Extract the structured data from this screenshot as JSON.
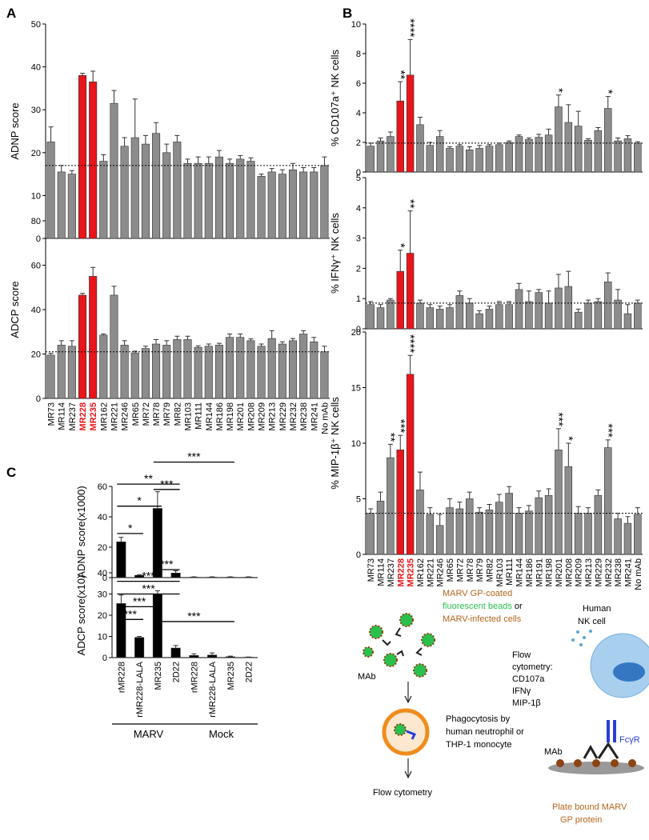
{
  "panel_labels": [
    "A",
    "B",
    "C"
  ],
  "chart_data": [
    {
      "type": "bar",
      "y_label": "ADNP score",
      "ylim": [
        0,
        50
      ],
      "yticks": [
        0,
        10,
        20,
        30,
        40,
        50
      ],
      "color": "#8c8c8c",
      "reference_line": 17,
      "categories": [
        null,
        null,
        null,
        null,
        null,
        null,
        null,
        null,
        null,
        null,
        null,
        null,
        null,
        null,
        null,
        null,
        null,
        null,
        null,
        null,
        null,
        null,
        null,
        null,
        null,
        null,
        null
      ],
      "values": [
        22.5,
        15.5,
        15,
        38,
        36.5,
        18,
        31.5,
        21.5,
        23.5,
        22,
        24.5,
        20,
        22.5,
        17.5,
        17.5,
        17.5,
        19,
        17.5,
        18.5,
        18,
        14.5,
        15.5,
        15,
        16,
        15.5,
        15.5,
        17
      ],
      "errors": [
        3.5,
        1.5,
        0.8,
        0.5,
        2.5,
        1.5,
        3,
        2,
        9,
        2,
        2.5,
        2,
        1.5,
        1,
        1.5,
        1.5,
        1.5,
        1,
        0.8,
        0.8,
        0.5,
        0.8,
        1,
        1.5,
        1,
        1,
        2
      ],
      "colors": [
        "#8c8c8c",
        "#8c8c8c",
        "#8c8c8c",
        "#e8161b",
        "#e8161b",
        "#8c8c8c",
        "#8c8c8c",
        "#8c8c8c",
        "#8c8c8c",
        "#8c8c8c",
        "#8c8c8c",
        "#8c8c8c",
        "#8c8c8c",
        "#8c8c8c",
        "#8c8c8c",
        "#8c8c8c",
        "#8c8c8c",
        "#8c8c8c",
        "#8c8c8c",
        "#8c8c8c",
        "#8c8c8c",
        "#8c8c8c",
        "#8c8c8c",
        "#8c8c8c",
        "#8c8c8c",
        "#8c8c8c",
        "#8c8c8c"
      ]
    },
    {
      "type": "bar",
      "y_label": "ADCP score",
      "ylim": [
        0,
        80
      ],
      "yticks": [
        0,
        20,
        40,
        60,
        80
      ],
      "color": "#8c8c8c",
      "reference_line": 21,
      "categories": [
        "MR73",
        "MR114",
        "MR237",
        "MR228",
        "MR235",
        "MR162",
        "MR221",
        "MR246",
        "MR65",
        "MR72",
        "MR78",
        "MR79",
        "MR82",
        "MR103",
        "MR111",
        "MR144",
        "MR186",
        "MR198",
        "MR201",
        "MR208",
        "MR209",
        "MR213",
        "MR229",
        "MR232",
        "MR238",
        "MR241",
        "No mAb"
      ],
      "values": [
        19.5,
        24,
        23.5,
        46.5,
        55,
        28.5,
        46.5,
        24,
        20.5,
        22.5,
        24.5,
        24,
        26.5,
        26.5,
        23,
        23.5,
        24,
        27.5,
        27.5,
        26,
        23.5,
        27,
        24.5,
        26,
        29,
        25.5,
        21
      ],
      "errors": [
        0.8,
        2,
        2.5,
        0.8,
        4,
        0.5,
        4,
        2,
        0.8,
        1,
        2,
        2,
        1.5,
        1.5,
        0.7,
        1,
        0.8,
        1.5,
        1.5,
        0.8,
        1,
        3.5,
        1,
        1,
        1.5,
        2,
        2.5
      ],
      "colors": [
        "#8c8c8c",
        "#8c8c8c",
        "#8c8c8c",
        "#e8161b",
        "#e8161b",
        "#8c8c8c",
        "#8c8c8c",
        "#8c8c8c",
        "#8c8c8c",
        "#8c8c8c",
        "#8c8c8c",
        "#8c8c8c",
        "#8c8c8c",
        "#8c8c8c",
        "#8c8c8c",
        "#8c8c8c",
        "#8c8c8c",
        "#8c8c8c",
        "#8c8c8c",
        "#8c8c8c",
        "#8c8c8c",
        "#8c8c8c",
        "#8c8c8c",
        "#8c8c8c",
        "#8c8c8c",
        "#8c8c8c",
        "#8c8c8c"
      ]
    },
    {
      "type": "bar",
      "y_label": "% CD107a⁺ NK cells",
      "ylim": [
        0,
        10
      ],
      "yticks": [
        0,
        2,
        4,
        6,
        8,
        10
      ],
      "color": "#8c8c8c",
      "reference_line": 1.95,
      "categories": [
        null,
        null,
        null,
        null,
        null,
        null,
        null,
        null,
        null,
        null,
        null,
        null,
        null,
        null,
        null,
        null,
        null,
        null,
        null,
        null,
        null,
        null,
        null,
        null,
        null,
        null,
        null,
        null
      ],
      "values": [
        1.75,
        2.1,
        2.4,
        4.8,
        6.55,
        3.2,
        1.8,
        2.4,
        1.6,
        1.75,
        1.5,
        1.6,
        1.75,
        1.85,
        2,
        2.4,
        2.2,
        2.35,
        2.5,
        4.4,
        3.35,
        3.1,
        2.15,
        2.8,
        4.3,
        2.1,
        2.25,
        1.95
      ],
      "errors": [
        0.2,
        0.2,
        0.3,
        1.3,
        2.4,
        0.5,
        0.2,
        0.4,
        0.1,
        0.1,
        0.2,
        0.2,
        0.1,
        0.1,
        0.1,
        0.1,
        0.1,
        0.2,
        0.4,
        0.8,
        1.2,
        1,
        0.1,
        0.2,
        0.8,
        0.2,
        0.2,
        0.1
      ],
      "annotations": [
        null,
        null,
        null,
        "**",
        "****",
        null,
        null,
        null,
        null,
        null,
        null,
        null,
        null,
        null,
        null,
        null,
        null,
        null,
        null,
        "*",
        null,
        null,
        null,
        null,
        "*",
        null,
        null,
        null
      ],
      "colors": [
        "#8c8c8c",
        "#8c8c8c",
        "#8c8c8c",
        "#e8161b",
        "#e8161b",
        "#8c8c8c",
        "#8c8c8c",
        "#8c8c8c",
        "#8c8c8c",
        "#8c8c8c",
        "#8c8c8c",
        "#8c8c8c",
        "#8c8c8c",
        "#8c8c8c",
        "#8c8c8c",
        "#8c8c8c",
        "#8c8c8c",
        "#8c8c8c",
        "#8c8c8c",
        "#8c8c8c",
        "#8c8c8c",
        "#8c8c8c",
        "#8c8c8c",
        "#8c8c8c",
        "#8c8c8c",
        "#8c8c8c",
        "#8c8c8c",
        "#8c8c8c"
      ]
    },
    {
      "type": "bar",
      "y_label": "% IFNγ⁺ NK cells",
      "ylim": [
        0,
        5
      ],
      "yticks": [
        0,
        1,
        2,
        3,
        4,
        5
      ],
      "color": "#8c8c8c",
      "reference_line": 0.85,
      "categories": [
        null,
        null,
        null,
        null,
        null,
        null,
        null,
        null,
        null,
        null,
        null,
        null,
        null,
        null,
        null,
        null,
        null,
        null,
        null,
        null,
        null,
        null,
        null,
        null,
        null,
        null,
        null,
        null
      ],
      "values": [
        0.8,
        0.7,
        0.95,
        1.9,
        2.5,
        0.85,
        0.7,
        0.65,
        0.7,
        1.1,
        0.85,
        0.5,
        0.65,
        0.8,
        0.8,
        1.3,
        0.9,
        1.2,
        0.85,
        1.35,
        1.4,
        0.55,
        0.85,
        0.9,
        1.55,
        0.95,
        0.5,
        0.85
      ],
      "errors": [
        0.1,
        0.1,
        0.05,
        0.7,
        1.4,
        0.1,
        0.1,
        0.1,
        0.1,
        0.15,
        0.15,
        0.1,
        0.1,
        0.1,
        0.1,
        0.2,
        0.35,
        0.1,
        0.4,
        0.45,
        0.5,
        0.1,
        0.1,
        0.1,
        0.3,
        0.35,
        0.3,
        0.1
      ],
      "annotations": [
        null,
        null,
        null,
        "*",
        "**",
        null,
        null,
        null,
        null,
        null,
        null,
        null,
        null,
        null,
        null,
        null,
        null,
        null,
        null,
        null,
        null,
        null,
        null,
        null,
        null,
        null,
        null,
        null
      ],
      "colors": [
        "#8c8c8c",
        "#8c8c8c",
        "#8c8c8c",
        "#e8161b",
        "#e8161b",
        "#8c8c8c",
        "#8c8c8c",
        "#8c8c8c",
        "#8c8c8c",
        "#8c8c8c",
        "#8c8c8c",
        "#8c8c8c",
        "#8c8c8c",
        "#8c8c8c",
        "#8c8c8c",
        "#8c8c8c",
        "#8c8c8c",
        "#8c8c8c",
        "#8c8c8c",
        "#8c8c8c",
        "#8c8c8c",
        "#8c8c8c",
        "#8c8c8c",
        "#8c8c8c",
        "#8c8c8c",
        "#8c8c8c",
        "#8c8c8c",
        "#8c8c8c"
      ]
    },
    {
      "type": "bar",
      "y_label": "% MIP-1β⁺ NK cells",
      "ylim": [
        0,
        20
      ],
      "yticks": [
        0,
        5,
        10,
        15,
        20
      ],
      "color": "#8c8c8c",
      "reference_line": 3.7,
      "categories": [
        "MR73",
        "MR114",
        "MR237",
        "MR228",
        "MR235",
        "MR162",
        "MR221",
        "MR246",
        "MR65",
        "MR72",
        "MR78",
        "MR79",
        "MR82",
        "MR103",
        "MR111",
        "MR144",
        "MR186",
        "MR191",
        "MR198",
        "MR201",
        "MR208",
        "MR209",
        "MR213",
        "MR229",
        "MR232",
        "MR238",
        "MR241",
        "No mAb"
      ],
      "values": [
        3.7,
        4.8,
        8.7,
        9.4,
        16.2,
        5.8,
        3.6,
        2.6,
        4.2,
        4.1,
        5,
        3.8,
        4,
        4.7,
        5.5,
        3.7,
        3.9,
        5.1,
        5.3,
        9.4,
        7.9,
        3.7,
        3.7,
        5.3,
        9.6,
        3.2,
        2.8,
        3.6
      ],
      "errors": [
        0.4,
        0.8,
        1.2,
        1.3,
        1.7,
        1.6,
        0.6,
        1,
        0.8,
        0.6,
        0.6,
        0.4,
        0.5,
        0.7,
        0.6,
        0.5,
        0.5,
        0.6,
        0.6,
        1.9,
        2.1,
        0.6,
        0.5,
        0.5,
        0.7,
        0.5,
        0.6,
        0.6
      ],
      "annotations": [
        null,
        null,
        "**",
        "***",
        "****",
        null,
        null,
        null,
        null,
        null,
        null,
        null,
        null,
        null,
        null,
        null,
        null,
        null,
        null,
        "***",
        "*",
        null,
        null,
        null,
        "***",
        null,
        null,
        null
      ],
      "colors": [
        "#8c8c8c",
        "#8c8c8c",
        "#8c8c8c",
        "#e8161b",
        "#e8161b",
        "#8c8c8c",
        "#8c8c8c",
        "#8c8c8c",
        "#8c8c8c",
        "#8c8c8c",
        "#8c8c8c",
        "#8c8c8c",
        "#8c8c8c",
        "#8c8c8c",
        "#8c8c8c",
        "#8c8c8c",
        "#8c8c8c",
        "#8c8c8c",
        "#8c8c8c",
        "#8c8c8c",
        "#8c8c8c",
        "#8c8c8c",
        "#8c8c8c",
        "#8c8c8c",
        "#8c8c8c",
        "#8c8c8c",
        "#8c8c8c",
        "#8c8c8c"
      ]
    },
    {
      "type": "bar",
      "y_label": "ADNP score(x1000)",
      "ylim": [
        0,
        60
      ],
      "yticks": [
        0,
        20,
        40,
        60
      ],
      "color": "#000000",
      "categories": [
        null,
        null,
        null,
        null,
        null,
        null,
        null,
        null
      ],
      "values": [
        23.5,
        1.5,
        45.5,
        3,
        0.3,
        0.3,
        0.3,
        0.3
      ],
      "errors": [
        3,
        0.5,
        11,
        1.5,
        0.2,
        0.2,
        0.2,
        0.2
      ],
      "colors": [
        "#000000",
        "#000000",
        "#000000",
        "#000000",
        "#000000",
        "#000000",
        "#000000",
        "#000000"
      ],
      "brackets": [
        {
          "from": 0,
          "to": 1,
          "y": 29,
          "label": "*"
        },
        {
          "from": 0,
          "to": 2,
          "y": 47,
          "label": "*"
        },
        {
          "from": 0,
          "to": 3,
          "y": 61.5,
          "label": "**"
        },
        {
          "from": 2,
          "to": 3,
          "y": 58,
          "label": "***"
        },
        {
          "from": 2,
          "to": 6,
          "y": 76,
          "label": "***"
        }
      ]
    },
    {
      "type": "bar",
      "y_label": "ADCP score(x10)",
      "ylim": [
        0,
        40
      ],
      "yticks": [
        0,
        10,
        20,
        30,
        40
      ],
      "color": "#000000",
      "categories": [
        "rMR228",
        "rMR228-LALA",
        "MR235",
        "2D22",
        "rMR228",
        "rMR228-LALA",
        "MR235",
        "2D22"
      ],
      "values": [
        25.5,
        9.5,
        30,
        4.5,
        1,
        1.2,
        0.4,
        0.2
      ],
      "errors": [
        4,
        0.5,
        1.5,
        1.2,
        0.8,
        1,
        0.3,
        0.1
      ],
      "colors": [
        "#000000",
        "#000000",
        "#000000",
        "#000000",
        "#000000",
        "#000000",
        "#000000",
        "#000000"
      ],
      "brackets": [
        {
          "from": 0,
          "to": 1,
          "y": 18,
          "label": "***"
        },
        {
          "from": 0,
          "to": 2,
          "y": 24,
          "label": "***"
        },
        {
          "from": 0,
          "to": 3,
          "y": 30,
          "label": "***"
        },
        {
          "from": 0,
          "to": 3,
          "y": 36,
          "label": "***"
        },
        {
          "from": 2,
          "to": 3,
          "y": 41.5,
          "label": "***"
        },
        {
          "from": 2,
          "to": 6,
          "y": 17,
          "label": "***"
        }
      ],
      "groups": [
        {
          "label": "MARV",
          "from": 0,
          "to": 3
        },
        {
          "label": "Mock",
          "from": 4,
          "to": 7
        }
      ]
    }
  ],
  "schematic": {
    "beads_1": "MARV GP-coated",
    "beads_2": "fluorescent beads",
    "beads_or": " or",
    "beads_3": "MARV-infected cells",
    "mab_left": "MAb",
    "phago_1": "Phagocytosis by",
    "phago_2": "human neutrophil or",
    "phago_3": "THP-1 monocyte",
    "flow_left": "Flow cytometry",
    "nk_1": "Human",
    "nk_2": "NK cell",
    "flow_1": "Flow",
    "flow_2": "cytometry:",
    "flow_3": "CD107a",
    "flow_4": "IFNγ",
    "flow_5": "MIP-1β",
    "fcr": "FcγR",
    "mab_right": "MAb",
    "plate_1": "Plate bound MARV",
    "plate_2": "GP protein"
  }
}
